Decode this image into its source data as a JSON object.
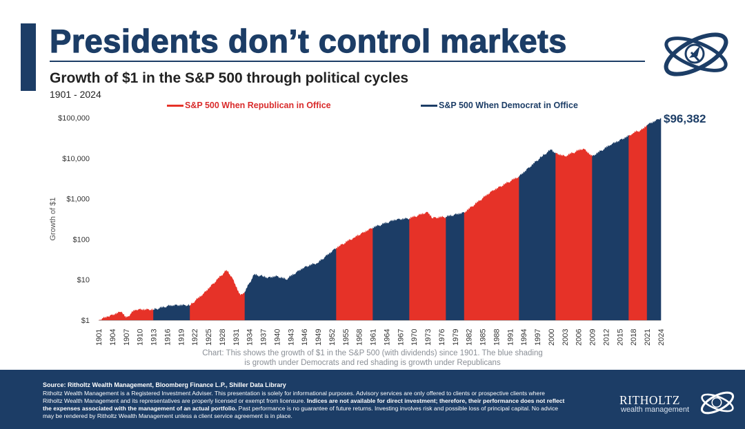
{
  "header": {
    "title": "Presidents don’t control markets",
    "subtitle": "Growth of $1 in the S&P 500 through political cycles",
    "years": "1901 - 2024"
  },
  "legend": {
    "republican": "S&P 500 When Republican in Office",
    "democrat": "S&P 500 When Democrat in Office"
  },
  "caption": {
    "line1": "Chart: This shows the growth of $1 in the S&P 500 (with dividends) since 1901. The blue shading",
    "line2": "is growth under Democrats and red shading is growth under Republicans"
  },
  "footer": {
    "source": "Source: Ritholtz Wealth Management, Bloomberg Finance L.P., Shiller Data Library",
    "line1": "Ritholtz Wealth Management is a Registered Investment Adviser. This presentation is solely for informational purposes. Advisory services are only offered to clients or prospective clients where",
    "line2a": "Ritholtz Wealth Management and its representatives are properly licensed or exempt from licensure. ",
    "line2b": "Indices are not available for direct investment; therefore, their performance does not reflect",
    "line3a": "the expenses associated with the management of an actual portfolio.",
    "line3b": " Past performance is no guarantee of future returns. Investing involves risk and possible loss of principal capital. No advice",
    "line4": "may be rendered by Ritholtz Wealth Management unless a client service agreement is in place.",
    "brand": "RITHOLTZ",
    "brand_sub": "wealth management"
  },
  "colors": {
    "republican": "#e63228",
    "democrat": "#1c3d66"
  },
  "icons": [
    "ritholtz-logo-icon"
  ],
  "chart_data": {
    "type": "area",
    "title": "Growth of $1 in the S&P 500 through political cycles",
    "xlabel": "",
    "ylabel": "Growth of $1",
    "yscale": "log",
    "ylim": [
      1,
      100000
    ],
    "xlim": [
      1901,
      2024
    ],
    "y_ticks": [
      1,
      10,
      100,
      1000,
      10000,
      100000
    ],
    "y_tick_labels": [
      "$1",
      "$10",
      "$100",
      "$1,000",
      "$10,000",
      "$100,000"
    ],
    "x_ticks": [
      1901,
      1904,
      1907,
      1910,
      1913,
      1916,
      1919,
      1922,
      1925,
      1928,
      1931,
      1934,
      1937,
      1940,
      1943,
      1946,
      1949,
      1952,
      1955,
      1958,
      1961,
      1964,
      1967,
      1970,
      1973,
      1976,
      1979,
      1982,
      1985,
      1988,
      1991,
      1994,
      1997,
      2000,
      2003,
      2006,
      2009,
      2012,
      2015,
      2018,
      2021,
      2024
    ],
    "end_label": "$96,382",
    "series": [
      {
        "x": [
          1901,
          1903,
          1906,
          1907,
          1909,
          1913,
          1917,
          1920,
          1921,
          1924,
          1927,
          1929,
          1930,
          1932,
          1933,
          1935,
          1937,
          1938,
          1940,
          1942,
          1946,
          1949,
          1953,
          1957,
          1961,
          1966,
          1969,
          1973,
          1974,
          1977,
          1981,
          1987,
          1993,
          1998,
          2000,
          2001,
          2003,
          2007,
          2009,
          2013,
          2017,
          2018,
          2020,
          2021,
          2024
        ],
        "y": [
          1,
          1.2,
          1.6,
          1.1,
          1.8,
          1.8,
          2.3,
          2.3,
          2.3,
          4.5,
          10,
          17,
          12,
          4,
          5,
          13,
          12,
          11,
          12,
          10,
          20,
          26,
          60,
          110,
          190,
          300,
          320,
          460,
          330,
          350,
          450,
          1500,
          3500,
          11000,
          16000,
          13000,
          11000,
          17000,
          11000,
          21000,
          35000,
          42000,
          50000,
          65000,
          96382
        ]
      }
    ],
    "party_periods": [
      {
        "start": 1901,
        "end": 1913,
        "party": "Republican"
      },
      {
        "start": 1913,
        "end": 1921,
        "party": "Democrat"
      },
      {
        "start": 1921,
        "end": 1933,
        "party": "Republican"
      },
      {
        "start": 1933,
        "end": 1953,
        "party": "Democrat"
      },
      {
        "start": 1953,
        "end": 1961,
        "party": "Republican"
      },
      {
        "start": 1961,
        "end": 1969,
        "party": "Democrat"
      },
      {
        "start": 1969,
        "end": 1977,
        "party": "Republican"
      },
      {
        "start": 1977,
        "end": 1981,
        "party": "Democrat"
      },
      {
        "start": 1981,
        "end": 1993,
        "party": "Republican"
      },
      {
        "start": 1993,
        "end": 2001,
        "party": "Democrat"
      },
      {
        "start": 2001,
        "end": 2009,
        "party": "Republican"
      },
      {
        "start": 2009,
        "end": 2017,
        "party": "Democrat"
      },
      {
        "start": 2017,
        "end": 2021,
        "party": "Republican"
      },
      {
        "start": 2021,
        "end": 2024,
        "party": "Democrat"
      }
    ],
    "legend": [
      "S&P 500 When Republican in Office",
      "S&P 500 When Democrat in Office"
    ],
    "legend_position": "top",
    "grid": false
  }
}
